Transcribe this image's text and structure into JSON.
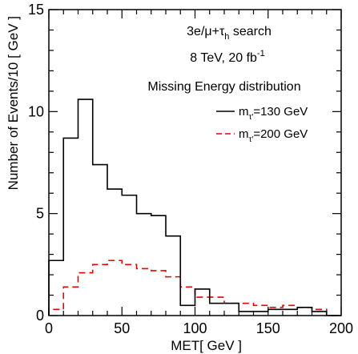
{
  "chart_data": {
    "type": "line",
    "step": true,
    "xlabel": "MET[ GeV ]",
    "ylabel": "Number of Events/10 [ GeV ]",
    "xlim": [
      0,
      200
    ],
    "ylim": [
      0,
      15
    ],
    "x_ticks": [
      0,
      50,
      100,
      150,
      200
    ],
    "y_ticks": [
      0,
      5,
      10,
      15
    ],
    "bin_edges": [
      0,
      10,
      20,
      30,
      40,
      50,
      60,
      70,
      80,
      90,
      100,
      110,
      120,
      130,
      140,
      150,
      160,
      170,
      180,
      190,
      200
    ],
    "annotations": {
      "line1_main": "3e/μ+τ",
      "line1_sub": "h",
      "line1_rest": " search",
      "line2_main": "8 TeV,  20 fb",
      "line2_sup": "-1",
      "line3": "Missing Energy  distribution"
    },
    "series": [
      {
        "label_main": "m",
        "label_sub": "τ′",
        "label_rest": "=130 GeV",
        "color": "#000000",
        "style": "solid",
        "values": [
          2.7,
          8.7,
          10.6,
          7.4,
          6.2,
          5.9,
          5.0,
          4.9,
          3.9,
          0.5,
          1.3,
          0.6,
          0.6,
          0.2,
          0.2,
          0.3,
          0.3,
          0.4,
          0.2,
          0.0
        ]
      },
      {
        "label_main": "m",
        "label_sub": "τ′",
        "label_rest": "=200 GeV",
        "color": "#e60000",
        "style": "dashed",
        "values": [
          0.3,
          1.4,
          2.1,
          2.5,
          2.7,
          2.5,
          2.3,
          2.2,
          1.9,
          1.4,
          0.9,
          0.9,
          0.6,
          0.6,
          0.5,
          0.4,
          0.5,
          0.4,
          0.3,
          0.0
        ]
      }
    ]
  }
}
